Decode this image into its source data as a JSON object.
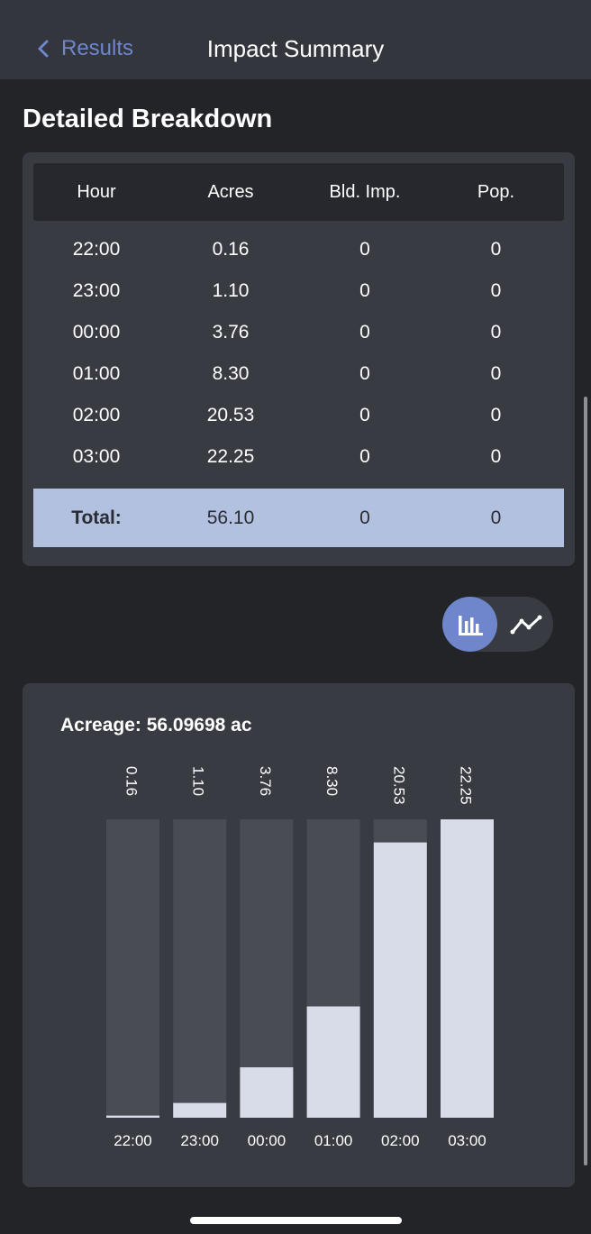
{
  "nav": {
    "back_label": "Results",
    "title": "Impact Summary"
  },
  "section_title": "Detailed Breakdown",
  "table": {
    "headers": [
      "Hour",
      "Acres",
      "Bld. Imp.",
      "Pop."
    ],
    "rows": [
      [
        "22:00",
        "0.16",
        "0",
        "0"
      ],
      [
        "23:00",
        "1.10",
        "0",
        "0"
      ],
      [
        "00:00",
        "3.76",
        "0",
        "0"
      ],
      [
        "01:00",
        "8.30",
        "0",
        "0"
      ],
      [
        "02:00",
        "20.53",
        "0",
        "0"
      ],
      [
        "03:00",
        "22.25",
        "0",
        "0"
      ]
    ],
    "total": [
      "Total:",
      "56.10",
      "0",
      "0"
    ]
  },
  "view_toggle": {
    "options": [
      "bar-chart-icon",
      "line-chart-icon"
    ],
    "selected": "bar-chart-icon"
  },
  "chart_title": "Acreage: 56.09698 ac",
  "chart_data": {
    "type": "bar",
    "title": "Acreage: 56.09698 ac",
    "categories": [
      "22:00",
      "23:00",
      "00:00",
      "01:00",
      "02:00",
      "03:00"
    ],
    "values": [
      0.16,
      1.1,
      3.76,
      8.3,
      20.53,
      22.25
    ],
    "value_labels": [
      "0.16",
      "1.10",
      "3.76",
      "8.30",
      "20.53",
      "22.25"
    ],
    "ylim": [
      0,
      22.25
    ],
    "grid": false,
    "colors": {
      "track": "#4a4c54",
      "fill": "#d8dbe8",
      "text": "#ffffff"
    }
  },
  "colors": {
    "accent": "#6f86cc",
    "background": "#232428",
    "card": "#393b43",
    "total_row": "#b3c1e0"
  }
}
